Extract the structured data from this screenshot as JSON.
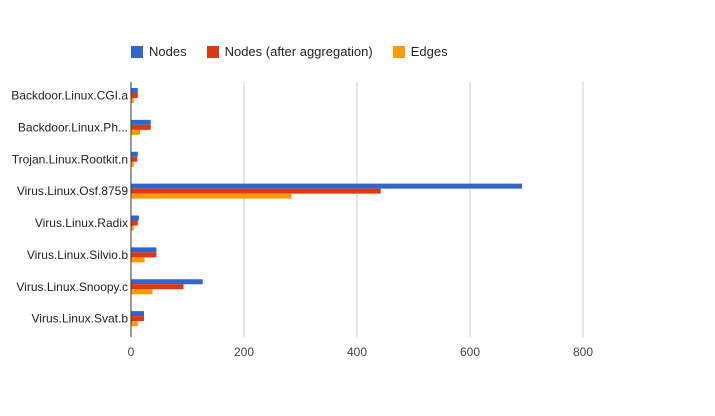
{
  "chart_data": {
    "type": "bar",
    "orientation": "horizontal",
    "categories": [
      "Backdoor.Linux.CGI.a",
      "Backdoor.Linux.Ph...",
      "Trojan.Linux.Rootkit.n",
      "Virus.Linux.Osf.8759",
      "Virus.Linux.Radix",
      "Virus.Linux.Silvio.b",
      "Virus.Linux.Snoopy.c",
      "Virus.Linux.Svat.b"
    ],
    "series": [
      {
        "name": "Nodes",
        "color": "#3366cc",
        "values": [
          12,
          35,
          12,
          692,
          14,
          45,
          127,
          23
        ]
      },
      {
        "name": "Nodes (after aggregation)",
        "color": "#dc3912",
        "values": [
          12,
          35,
          11,
          442,
          12,
          45,
          93,
          23
        ]
      },
      {
        "name": "Edges",
        "color": "#ff9900",
        "values": [
          5,
          16,
          5,
          284,
          5,
          24,
          38,
          12
        ]
      }
    ],
    "xticks": [
      0,
      200,
      400,
      600,
      800
    ],
    "xlim": [
      0,
      900
    ],
    "grid": true,
    "legend_position": "top",
    "title": "",
    "xlabel": "",
    "ylabel": ""
  }
}
